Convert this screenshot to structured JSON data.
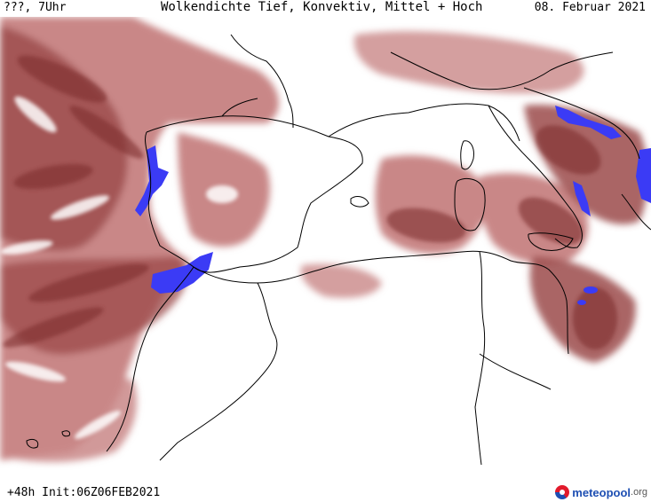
{
  "header": {
    "left": "???, 7Uhr",
    "title": "Wolkendichte  Tief, Konvektiv, Mittel + Hoch",
    "date": "08. Februar 2021"
  },
  "footer": {
    "run": "+48h  Init:06Z06FEB2021",
    "logo_text": "meteopool",
    "logo_ext": ".org"
  },
  "colors": {
    "background": "#ffffff",
    "cloud_light": "#e9bcbc",
    "cloud_mid": "#c98787",
    "cloud_dark": "#9b4a4a",
    "cloud_darkest": "#7e2f2f",
    "convective": "#3b3bf5",
    "coastline": "#000000",
    "logo_red": "#e21a2c",
    "logo_blue": "#1e4fb3"
  },
  "legend_icons": [
    "logo-circle-icon"
  ]
}
